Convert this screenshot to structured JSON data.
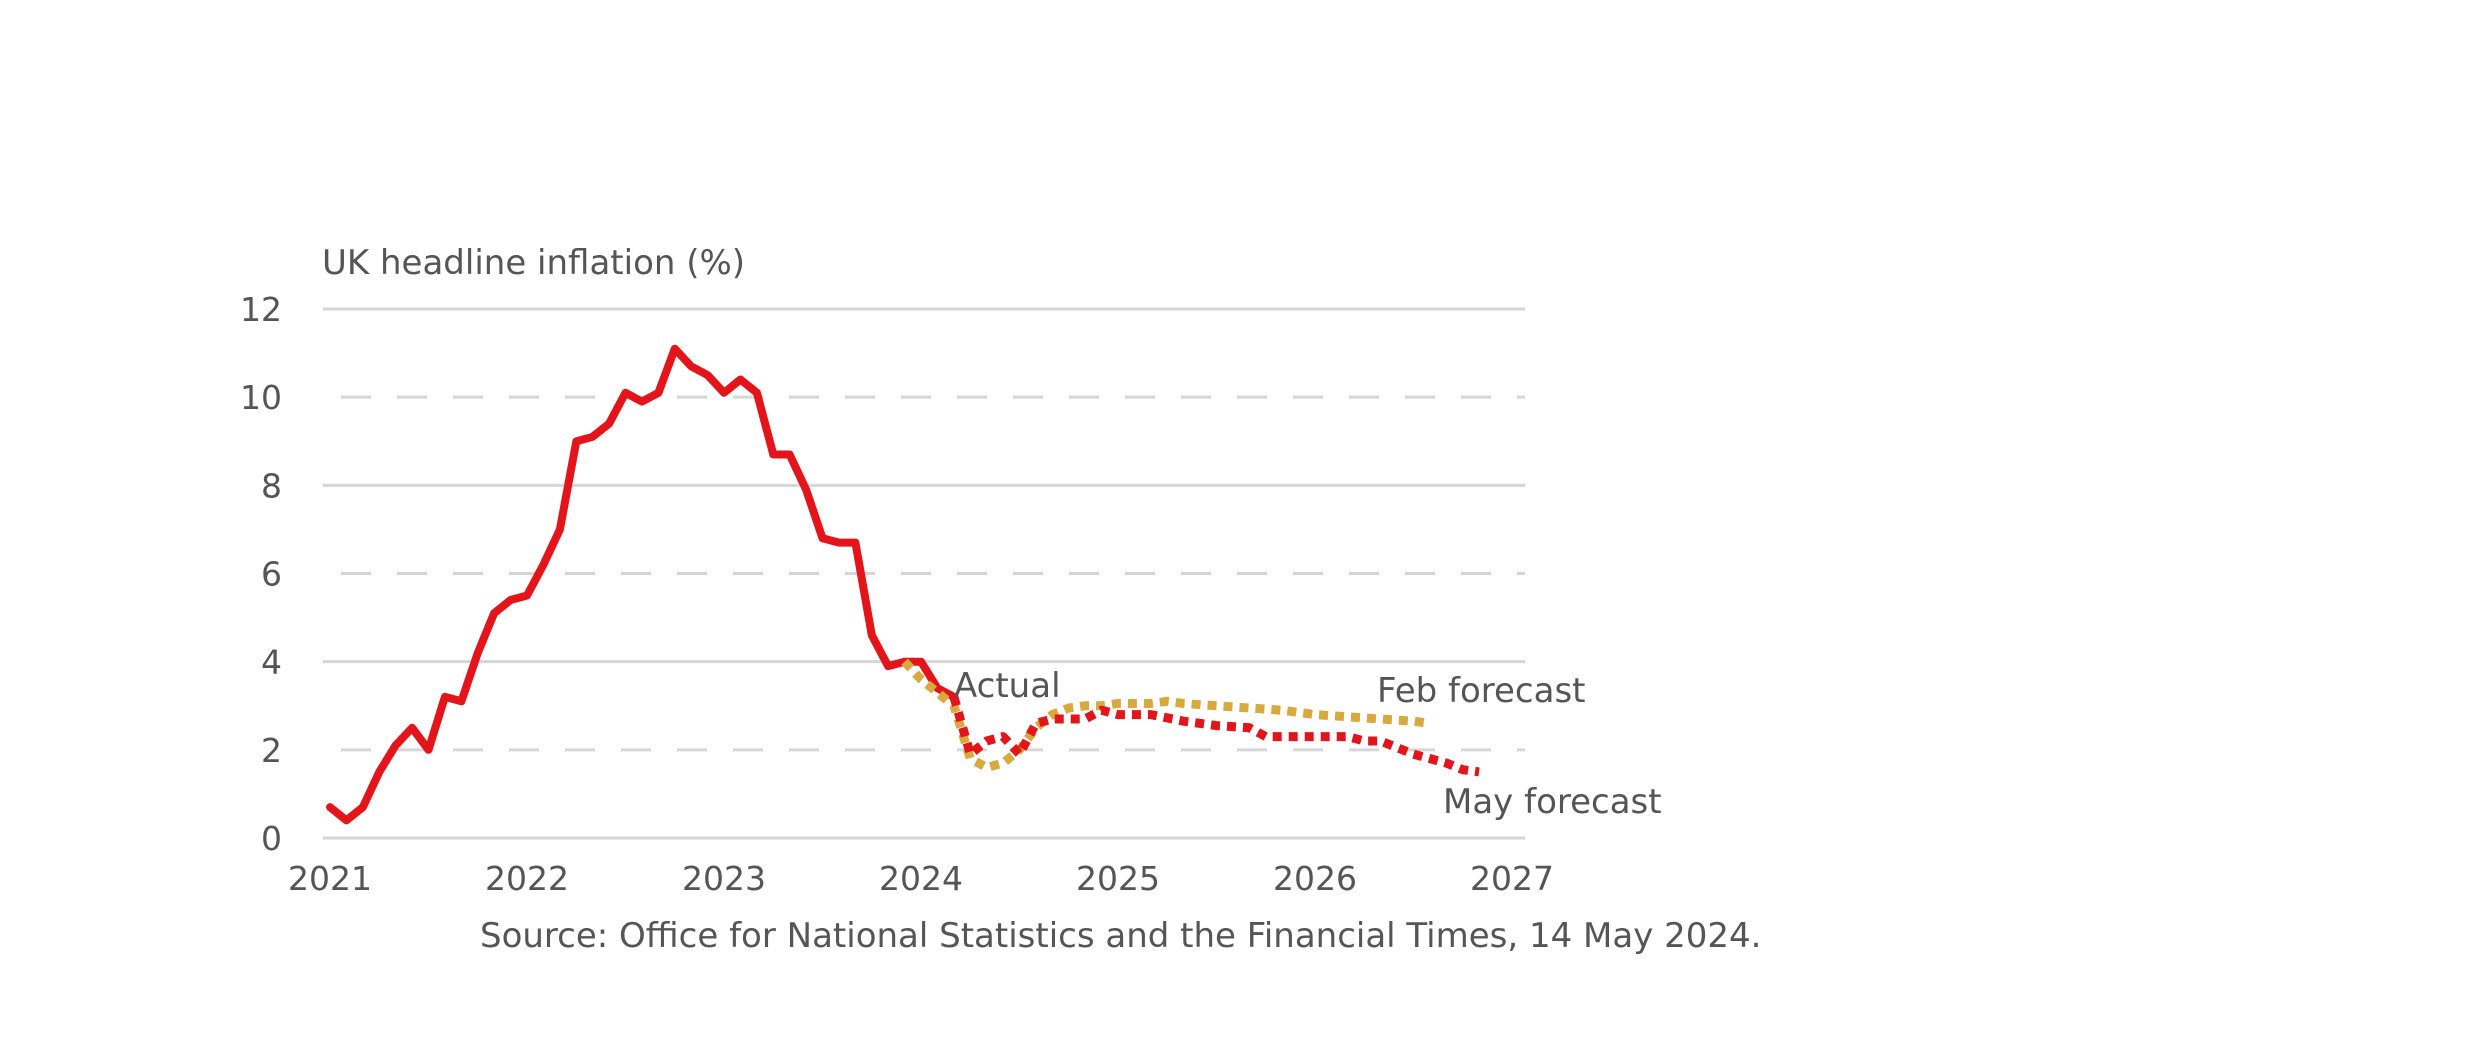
{
  "chart_data": {
    "type": "line",
    "ylabel": "UK headline inflation (%)",
    "source": "Source: Office for National Statistics and the Financial Times, 14 May 2024.",
    "ylim": [
      0,
      12
    ],
    "xlim": [
      2021,
      2027
    ],
    "yticks": [
      0,
      2,
      4,
      6,
      8,
      10,
      12
    ],
    "xticks": [
      "2021",
      "2022",
      "2023",
      "2024",
      "2025",
      "2026",
      "2027"
    ],
    "gridlines": {
      "solid": [
        0,
        4,
        8,
        12
      ],
      "dashed": [
        2,
        6,
        10
      ]
    },
    "series": [
      {
        "name": "Actual",
        "color": "#e3151a",
        "style": "solid",
        "points": [
          [
            2021.0,
            0.7
          ],
          [
            2021.083,
            0.4
          ],
          [
            2021.167,
            0.7
          ],
          [
            2021.25,
            1.5
          ],
          [
            2021.333,
            2.1
          ],
          [
            2021.417,
            2.5
          ],
          [
            2021.5,
            2.0
          ],
          [
            2021.583,
            3.2
          ],
          [
            2021.667,
            3.1
          ],
          [
            2021.75,
            4.2
          ],
          [
            2021.833,
            5.1
          ],
          [
            2021.917,
            5.4
          ],
          [
            2022.0,
            5.5
          ],
          [
            2022.083,
            6.2
          ],
          [
            2022.167,
            7.0
          ],
          [
            2022.25,
            9.0
          ],
          [
            2022.333,
            9.1
          ],
          [
            2022.417,
            9.4
          ],
          [
            2022.5,
            10.1
          ],
          [
            2022.583,
            9.9
          ],
          [
            2022.667,
            10.1
          ],
          [
            2022.75,
            11.1
          ],
          [
            2022.833,
            10.7
          ],
          [
            2022.917,
            10.5
          ],
          [
            2023.0,
            10.1
          ],
          [
            2023.083,
            10.4
          ],
          [
            2023.167,
            10.1
          ],
          [
            2023.25,
            8.7
          ],
          [
            2023.333,
            8.7
          ],
          [
            2023.417,
            7.9
          ],
          [
            2023.5,
            6.8
          ],
          [
            2023.583,
            6.7
          ],
          [
            2023.667,
            6.7
          ],
          [
            2023.75,
            4.6
          ],
          [
            2023.833,
            3.9
          ],
          [
            2023.917,
            4.0
          ],
          [
            2024.0,
            4.0
          ],
          [
            2024.083,
            3.4
          ],
          [
            2024.167,
            3.2
          ]
        ]
      },
      {
        "name": "Feb forecast",
        "color": "#d8a93f",
        "style": "dotted",
        "points": [
          [
            2023.917,
            4.0
          ],
          [
            2024.0,
            3.6
          ],
          [
            2024.083,
            3.3
          ],
          [
            2024.167,
            3.0
          ],
          [
            2024.25,
            1.8
          ],
          [
            2024.333,
            1.6
          ],
          [
            2024.417,
            1.7
          ],
          [
            2024.5,
            2.0
          ],
          [
            2024.583,
            2.5
          ],
          [
            2024.667,
            2.8
          ],
          [
            2024.75,
            2.95
          ],
          [
            2024.833,
            3.0
          ],
          [
            2024.917,
            3.0
          ],
          [
            2025.0,
            3.05
          ],
          [
            2025.083,
            3.05
          ],
          [
            2025.167,
            3.05
          ],
          [
            2025.25,
            3.1
          ],
          [
            2025.333,
            3.05
          ],
          [
            2025.5,
            3.0
          ],
          [
            2025.667,
            2.95
          ],
          [
            2025.833,
            2.9
          ],
          [
            2026.0,
            2.8
          ],
          [
            2026.167,
            2.75
          ],
          [
            2026.333,
            2.7
          ],
          [
            2026.5,
            2.65
          ],
          [
            2026.583,
            2.6
          ]
        ]
      },
      {
        "name": "May forecast",
        "color": "#e3151a",
        "style": "dotted",
        "points": [
          [
            2024.167,
            3.2
          ],
          [
            2024.25,
            1.9
          ],
          [
            2024.333,
            2.2
          ],
          [
            2024.417,
            2.3
          ],
          [
            2024.5,
            1.9
          ],
          [
            2024.583,
            2.6
          ],
          [
            2024.667,
            2.7
          ],
          [
            2024.75,
            2.7
          ],
          [
            2024.833,
            2.7
          ],
          [
            2024.917,
            2.9
          ],
          [
            2025.0,
            2.8
          ],
          [
            2025.167,
            2.8
          ],
          [
            2025.333,
            2.65
          ],
          [
            2025.5,
            2.55
          ],
          [
            2025.667,
            2.5
          ],
          [
            2025.75,
            2.3
          ],
          [
            2025.833,
            2.3
          ],
          [
            2026.0,
            2.3
          ],
          [
            2026.167,
            2.3
          ],
          [
            2026.25,
            2.2
          ],
          [
            2026.333,
            2.2
          ],
          [
            2026.5,
            1.9
          ],
          [
            2026.667,
            1.7
          ],
          [
            2026.75,
            1.55
          ],
          [
            2026.833,
            1.5
          ]
        ]
      }
    ],
    "annotations": [
      {
        "text": "Actual",
        "series": "Actual"
      },
      {
        "text": "Feb forecast",
        "series": "Feb forecast"
      },
      {
        "text": "May forecast",
        "series": "May forecast"
      }
    ]
  }
}
